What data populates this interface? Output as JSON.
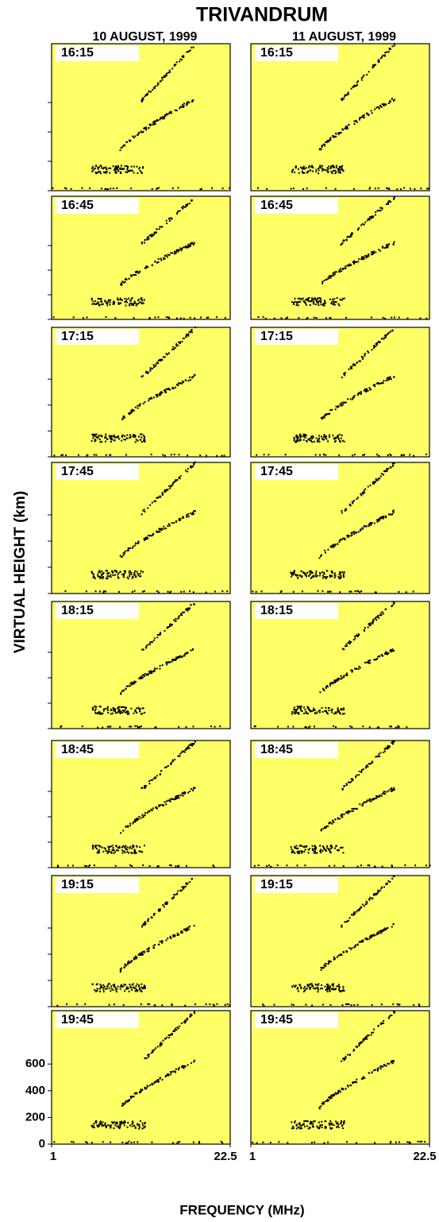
{
  "title": "TRIVANDRUM",
  "y_axis": {
    "label": "VIRTUAL HEIGHT (km)",
    "ylim": [
      0,
      1000
    ],
    "ticks": [
      0,
      200,
      400,
      600
    ]
  },
  "x_axis": {
    "label": "FREQUENCY (MHz)",
    "xlim": [
      1,
      22.5
    ],
    "ticks": [
      1,
      22.5
    ]
  },
  "columns": [
    {
      "heading": "10 AUGUST, 1999",
      "panels": [
        "16:15",
        "16:45",
        "17:15",
        "17:45",
        "18:15",
        "18:45",
        "19:15",
        "19:45"
      ]
    },
    {
      "heading": "11 AUGUST, 1999",
      "panels": [
        "16:15",
        "16:45",
        "17:15",
        "17:45",
        "18:15",
        "18:45",
        "19:15",
        "19:45"
      ]
    }
  ]
}
